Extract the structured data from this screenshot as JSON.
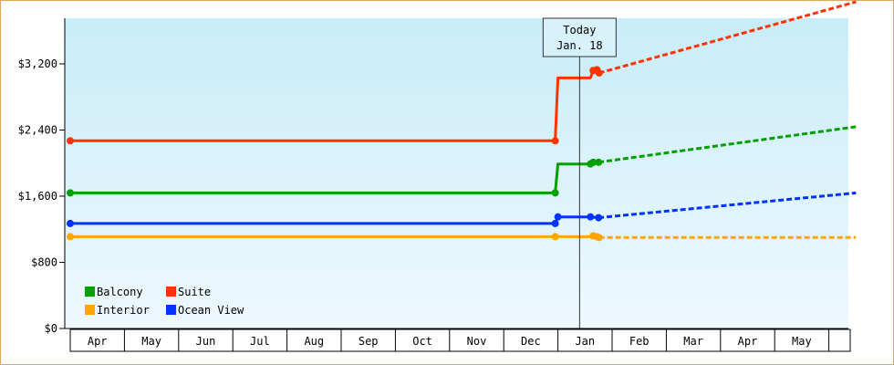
{
  "chart_data": {
    "type": "line",
    "y_ticks": [
      "$0",
      "$800",
      "$1,600",
      "$2,400",
      "$3,200"
    ],
    "y_tick_values": [
      0,
      800,
      1600,
      2400,
      3200
    ],
    "ylim": [
      0,
      3600
    ],
    "x_labels": [
      "Apr",
      "May",
      "Jun",
      "Jul",
      "Aug",
      "Sep",
      "Oct",
      "Nov",
      "Dec",
      "Jan",
      "Feb",
      "Mar",
      "Apr",
      "May"
    ],
    "today_label_line1": "Today",
    "today_label_line2": "Jan. 18",
    "today_x": 9.4,
    "grid": false,
    "legend_placement": "bottom-left",
    "series": [
      {
        "name": "Balcony",
        "color": "#00a000",
        "points": [
          [
            0,
            1640
          ],
          [
            8.95,
            1640
          ],
          [
            9.0,
            1990
          ],
          [
            9.6,
            1990
          ],
          [
            9.65,
            2010
          ],
          [
            9.75,
            2010
          ]
        ],
        "forecast": [
          [
            9.75,
            2010
          ],
          [
            14.5,
            2440
          ]
        ]
      },
      {
        "name": "Suite",
        "color": "#ff3300",
        "points": [
          [
            0,
            2270
          ],
          [
            8.95,
            2270
          ],
          [
            9.0,
            3030
          ],
          [
            9.6,
            3030
          ],
          [
            9.65,
            3120
          ],
          [
            9.72,
            3130
          ],
          [
            9.76,
            3090
          ]
        ],
        "forecast": [
          [
            9.76,
            3090
          ],
          [
            14.5,
            3950
          ]
        ]
      },
      {
        "name": "Interior",
        "color": "#ffa500",
        "points": [
          [
            0,
            1110
          ],
          [
            8.95,
            1110
          ],
          [
            9.6,
            1110
          ],
          [
            9.65,
            1120
          ],
          [
            9.72,
            1110
          ],
          [
            9.76,
            1100
          ]
        ],
        "forecast": [
          [
            9.76,
            1100
          ],
          [
            14.5,
            1100
          ]
        ]
      },
      {
        "name": "Ocean View",
        "color": "#0033ff",
        "points": [
          [
            0,
            1270
          ],
          [
            8.95,
            1270
          ],
          [
            9.0,
            1350
          ],
          [
            9.6,
            1350
          ],
          [
            9.75,
            1340
          ]
        ],
        "forecast": [
          [
            9.75,
            1340
          ],
          [
            14.5,
            1640
          ]
        ]
      }
    ],
    "legend": [
      {
        "name": "Balcony",
        "color": "#00a000"
      },
      {
        "name": "Suite",
        "color": "#ff3300"
      },
      {
        "name": "Interior",
        "color": "#ffa500"
      },
      {
        "name": "Ocean View",
        "color": "#0033ff"
      }
    ]
  }
}
